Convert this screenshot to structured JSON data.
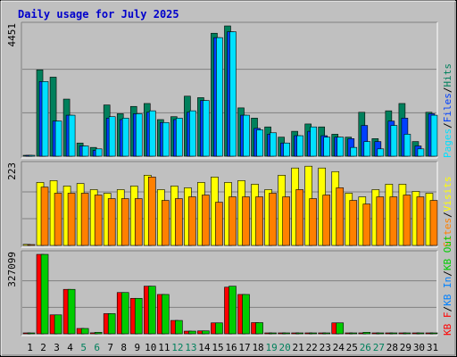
{
  "title": "Daily usage for July 2025",
  "colors": {
    "frame": "#c0c0c0",
    "plot_bg": "#c0c0c0",
    "title": "#0000cc",
    "hits": "#00805c",
    "files": "#0040ff",
    "pages": "#00e0ff",
    "visits": "#ffff00",
    "sites": "#ff8000",
    "kbf": "#ff0000",
    "kbin": "#0080ff",
    "kbout": "#00cc00",
    "weekend": "#00805c",
    "weekday": "#000000"
  },
  "chart_data": [
    {
      "type": "bar",
      "name": "hits-files-pages",
      "ymax_label": "4451",
      "ymax": 4451,
      "right_label": [
        "Pages",
        "Files",
        "Hits"
      ],
      "categories": [
        "1",
        "2",
        "3",
        "4",
        "5",
        "6",
        "7",
        "8",
        "9",
        "10",
        "11",
        "12",
        "13",
        "14",
        "15",
        "16",
        "17",
        "18",
        "19",
        "20",
        "21",
        "22",
        "23",
        "24",
        "25",
        "26",
        "27",
        "28",
        "29",
        "30",
        "31"
      ],
      "series": [
        {
          "name": "Hits",
          "values": [
            30,
            2950,
            2700,
            1950,
            450,
            300,
            1750,
            1450,
            1700,
            1800,
            1250,
            1350,
            2050,
            2000,
            4200,
            4450,
            1650,
            1300,
            1000,
            650,
            850,
            1100,
            1000,
            750,
            650,
            1500,
            600,
            1550,
            1800,
            500,
            1500
          ]
        },
        {
          "name": "Files",
          "values": [
            10,
            2550,
            1200,
            1400,
            350,
            200,
            1300,
            1250,
            1450,
            1500,
            1150,
            1250,
            1500,
            1900,
            4050,
            4250,
            1400,
            950,
            750,
            450,
            700,
            850,
            700,
            650,
            600,
            1050,
            500,
            1200,
            1300,
            350,
            1450
          ]
        },
        {
          "name": "Pages",
          "values": [
            5,
            2550,
            1200,
            1400,
            350,
            250,
            1350,
            1300,
            1450,
            1550,
            1150,
            1300,
            1550,
            1900,
            4050,
            4250,
            1400,
            900,
            800,
            450,
            700,
            1000,
            650,
            650,
            300,
            500,
            250,
            1050,
            750,
            250,
            1400
          ]
        }
      ]
    },
    {
      "type": "bar",
      "name": "visits-sites",
      "ymax_label": "223",
      "ymax": 223,
      "right_label": [
        "Sites",
        "Visits"
      ],
      "categories": [
        "1",
        "2",
        "3",
        "4",
        "5",
        "6",
        "7",
        "8",
        "9",
        "10",
        "11",
        "12",
        "13",
        "14",
        "15",
        "16",
        "17",
        "18",
        "19",
        "20",
        "21",
        "22",
        "23",
        "24",
        "25",
        "26",
        "27",
        "28",
        "29",
        "30",
        "31"
      ],
      "series": [
        {
          "name": "Visits",
          "values": [
            3,
            175,
            180,
            165,
            172,
            155,
            145,
            155,
            165,
            195,
            155,
            165,
            160,
            175,
            190,
            175,
            180,
            170,
            155,
            195,
            215,
            220,
            215,
            205,
            145,
            135,
            155,
            170,
            170,
            150,
            145
          ]
        },
        {
          "name": "Sites",
          "values": [
            1,
            162,
            145,
            145,
            145,
            140,
            130,
            130,
            130,
            190,
            125,
            130,
            135,
            140,
            120,
            135,
            135,
            135,
            145,
            135,
            155,
            130,
            140,
            160,
            125,
            115,
            135,
            135,
            140,
            135,
            125
          ]
        }
      ]
    },
    {
      "type": "bar",
      "name": "kbytes",
      "ymax_label": "327099",
      "ymax": 327099,
      "right_label": [
        "KB F",
        "KB In",
        "KB Out"
      ],
      "categories": [
        "1",
        "2",
        "3",
        "4",
        "5",
        "6",
        "7",
        "8",
        "9",
        "10",
        "11",
        "12",
        "13",
        "14",
        "15",
        "16",
        "17",
        "18",
        "19",
        "20",
        "21",
        "22",
        "23",
        "24",
        "25",
        "26",
        "27",
        "28",
        "29",
        "30",
        "31"
      ],
      "series": [
        {
          "name": "KB F",
          "values": [
            0,
            327099,
            78000,
            183000,
            22000,
            4000,
            83000,
            170000,
            146000,
            196000,
            162000,
            55000,
            11000,
            12000,
            45000,
            192000,
            162000,
            46000,
            0,
            0,
            0,
            0,
            0,
            45000,
            0,
            0,
            0,
            0,
            0,
            0,
            0
          ]
        },
        {
          "name": "KB Out",
          "values": [
            0,
            327099,
            78000,
            183000,
            22000,
            6000,
            83000,
            170000,
            146000,
            196000,
            162000,
            55000,
            11000,
            12000,
            45000,
            196000,
            162000,
            46000,
            3000,
            3000,
            3000,
            3000,
            3000,
            45000,
            3000,
            6000,
            3000,
            3000,
            3000,
            3000,
            3000
          ]
        }
      ]
    }
  ],
  "weekend_days": [
    5,
    6,
    12,
    13,
    19,
    20,
    26,
    27
  ]
}
